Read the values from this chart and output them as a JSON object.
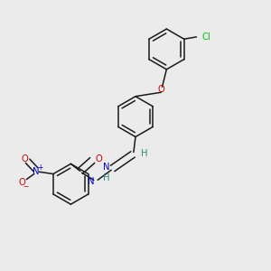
{
  "background_color": "#ebebeb",
  "bond_color": "#1a1a1a",
  "figsize": [
    3.0,
    3.0
  ],
  "dpi": 100,
  "atoms": {
    "Cl": {
      "color": "#00bb00",
      "fontsize": 7.2
    },
    "O": {
      "color": "#cc0000",
      "fontsize": 7.2
    },
    "N": {
      "color": "#0000cc",
      "fontsize": 7.2
    },
    "H": {
      "color": "#338888",
      "fontsize": 7.2
    }
  },
  "lw": 1.1,
  "dbo": 0.013
}
